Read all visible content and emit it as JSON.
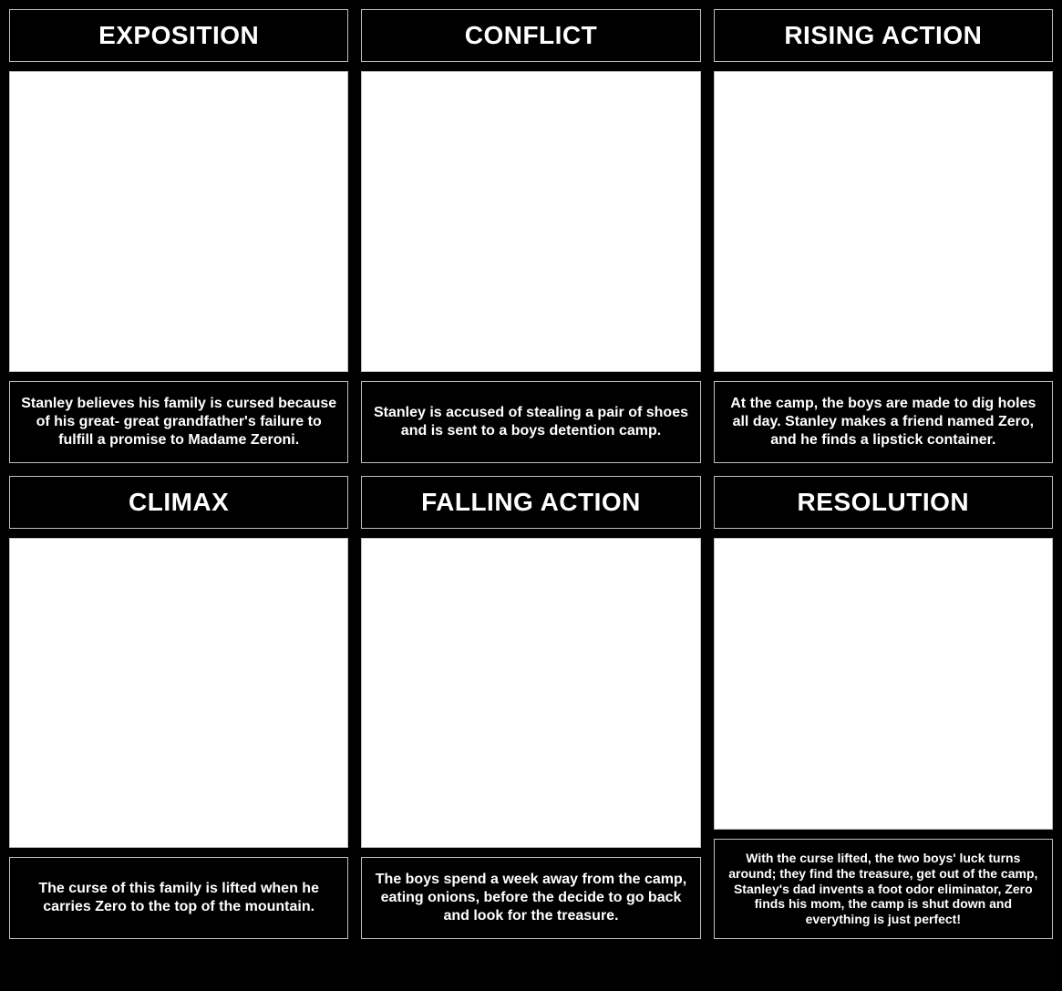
{
  "layout": {
    "type": "infographic",
    "grid_columns": 3,
    "grid_rows": 2,
    "background_color": "#000000",
    "border_color": "#bfbfbf",
    "text_color": "#ffffff",
    "image_background": "#ffffff",
    "header_fontsize": 28,
    "description_fontsize": 16,
    "description_fontsize_small": 14
  },
  "panels": [
    {
      "title": "EXPOSITION",
      "description": "Stanley believes his family is cursed because of his great- great grandfather's failure to fulfill a promise to Madame Zeroni."
    },
    {
      "title": "CONFLICT",
      "description": "Stanley is accused of stealing a pair of shoes and is sent to a boys detention camp."
    },
    {
      "title": "RISING ACTION",
      "description": "At the camp, the boys are made to dig holes all day. Stanley makes a friend named Zero, and he finds a lipstick container."
    },
    {
      "title": "CLIMAX",
      "description": "The curse of this family is lifted when he carries Zero to the top of the mountain."
    },
    {
      "title": "FALLING ACTION",
      "description": "The boys spend a week away from the camp, eating onions, before the decide to go back and look for the treasure."
    },
    {
      "title": "RESOLUTION",
      "description": "With the curse lifted, the two boys' luck turns around; they find the treasure, get out of the camp, Stanley's dad invents a foot odor eliminator, Zero finds his mom, the camp is shut down and everything is just perfect!",
      "small": true
    }
  ]
}
